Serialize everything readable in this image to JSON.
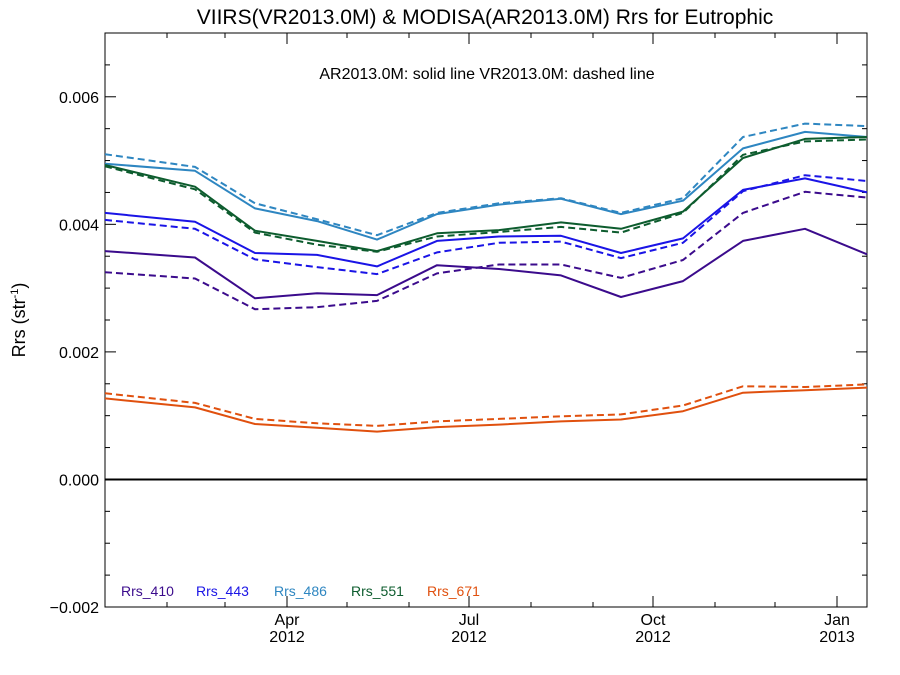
{
  "chart_data": {
    "type": "line",
    "title": "VIIRS(VR2013.0M) & MODISA(AR2013.0M)  Rrs for Eutrophic",
    "annotation": "AR2013.0M: solid line   VR2013.0M: dashed line",
    "ylabel": "Rrs (str",
    "ylabel_sup": "-1",
    "ylabel_close": ")",
    "xlabel": "",
    "ylim": [
      -0.002,
      0.007
    ],
    "xlim": [
      "2012-01-01",
      "2013-01-16"
    ],
    "yticks": [
      {
        "value": -0.002,
        "label": "−0.002"
      },
      {
        "value": 0.0,
        "label": "0.000"
      },
      {
        "value": 0.002,
        "label": "0.002"
      },
      {
        "value": 0.004,
        "label": "0.004"
      },
      {
        "value": 0.006,
        "label": "0.006"
      }
    ],
    "xticks": [
      {
        "date": "2012-04-01",
        "month": "Apr",
        "year": "2012"
      },
      {
        "date": "2012-07-01",
        "month": "Jul",
        "year": "2012"
      },
      {
        "date": "2012-10-01",
        "month": "Oct",
        "year": "2012"
      },
      {
        "date": "2013-01-01",
        "month": "Jan",
        "year": "2013"
      }
    ],
    "zero_line": 0.0,
    "grid": false,
    "legend_position": "bottom-left",
    "x": [
      "2012-01-01",
      "2012-02-15",
      "2012-03-16",
      "2012-04-16",
      "2012-05-16",
      "2012-06-15",
      "2012-07-16",
      "2012-08-16",
      "2012-09-15",
      "2012-10-16",
      "2012-11-15",
      "2012-12-16",
      "2013-01-16"
    ],
    "series": [
      {
        "name": "Rrs_410",
        "color": "#3b0b8c",
        "solid": [
          0.00358,
          0.00348,
          0.00284,
          0.00292,
          0.00289,
          0.00336,
          0.0033,
          0.0032,
          0.00286,
          0.00311,
          0.00374,
          0.00393,
          0.00353
        ],
        "dashed": [
          0.00325,
          0.00315,
          0.00267,
          0.0027,
          0.0028,
          0.00323,
          0.00337,
          0.00337,
          0.00316,
          0.00344,
          0.00418,
          0.00451,
          0.00442
        ]
      },
      {
        "name": "Rrs_443",
        "color": "#1a14e6",
        "solid": [
          0.00418,
          0.00404,
          0.00355,
          0.00352,
          0.00334,
          0.00374,
          0.00381,
          0.00382,
          0.00355,
          0.00378,
          0.00454,
          0.00472,
          0.0045
        ],
        "dashed": [
          0.00407,
          0.00393,
          0.00345,
          0.00333,
          0.00322,
          0.00356,
          0.00371,
          0.00373,
          0.00347,
          0.00371,
          0.00452,
          0.00477,
          0.00468
        ]
      },
      {
        "name": "Rrs_486",
        "color": "#2e86c1",
        "solid": [
          0.00495,
          0.00484,
          0.00425,
          0.00405,
          0.00376,
          0.00416,
          0.00431,
          0.0044,
          0.00416,
          0.00437,
          0.00519,
          0.00545,
          0.00537
        ],
        "dashed": [
          0.0051,
          0.0049,
          0.00433,
          0.00408,
          0.00383,
          0.00418,
          0.00433,
          0.00441,
          0.00418,
          0.00441,
          0.00537,
          0.00558,
          0.00554
        ]
      },
      {
        "name": "Rrs_551",
        "color": "#0d5c2e",
        "solid": [
          0.00493,
          0.00459,
          0.0039,
          0.00374,
          0.00358,
          0.00386,
          0.00391,
          0.00403,
          0.00393,
          0.0042,
          0.00504,
          0.00534,
          0.00537
        ],
        "dashed": [
          0.00491,
          0.00455,
          0.00387,
          0.00368,
          0.00357,
          0.00381,
          0.00388,
          0.00396,
          0.00387,
          0.00418,
          0.00509,
          0.0053,
          0.00533
        ]
      },
      {
        "name": "Rrs_671",
        "color": "#e0500e",
        "solid": [
          0.00127,
          0.00113,
          0.00087,
          0.00081,
          0.00075,
          0.00082,
          0.00086,
          0.00091,
          0.00094,
          0.00107,
          0.00136,
          0.0014,
          0.00144
        ],
        "dashed": [
          0.00135,
          0.0012,
          0.00095,
          0.00088,
          0.00084,
          0.00091,
          0.00095,
          0.00099,
          0.00102,
          0.00116,
          0.00146,
          0.00145,
          0.00149
        ]
      }
    ]
  }
}
